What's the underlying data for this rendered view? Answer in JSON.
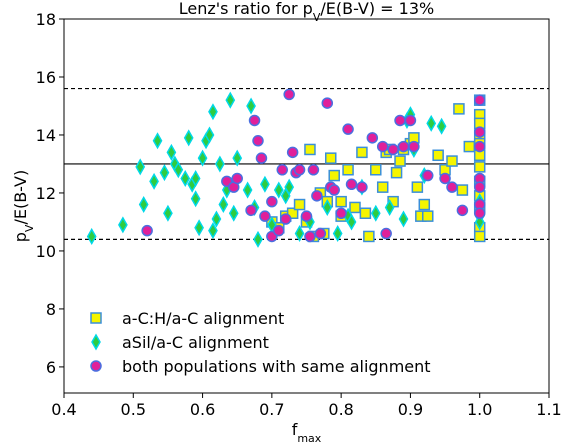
{
  "chart_data": {
    "type": "scatter",
    "title": [
      {
        "text": "Lenz's ratio for p"
      },
      {
        "text": "V",
        "sub": true
      },
      {
        "text": "/E(B-V) = 13%"
      }
    ],
    "xlabel": [
      {
        "text": "f"
      },
      {
        "text": "max",
        "sub": true
      }
    ],
    "ylabel": [
      {
        "text": "p"
      },
      {
        "text": "V",
        "sub": true
      },
      {
        "text": "/E(B-V)"
      }
    ],
    "xlim": [
      0.4,
      1.1
    ],
    "ylim": [
      5.1,
      18
    ],
    "xticks": [
      0.4,
      0.5,
      0.6,
      0.7,
      0.8,
      0.9,
      {
        "value": 1,
        "label": "1.0"
      },
      1.1
    ],
    "yticks": [
      6,
      8,
      10,
      12,
      14,
      16,
      18
    ],
    "hlines": [
      {
        "value": 13,
        "style": "solid"
      },
      {
        "value": 15.6,
        "style": "dashed"
      },
      {
        "value": 10.4,
        "style": "dashed"
      }
    ],
    "legend": "lower left",
    "series": [
      {
        "name": "a-C:H/a-C alignment",
        "marker": "square",
        "color": "#f5f500",
        "edgecolor": "#3a8fd9",
        "x": [
          0.7,
          0.71,
          0.72,
          0.73,
          0.74,
          0.75,
          0.755,
          0.76,
          0.77,
          0.775,
          0.78,
          0.785,
          0.79,
          0.8,
          0.8,
          0.81,
          0.82,
          0.83,
          0.835,
          0.84,
          0.85,
          0.86,
          0.865,
          0.87,
          0.875,
          0.88,
          0.885,
          0.89,
          0.9,
          0.905,
          0.91,
          0.915,
          0.92,
          0.925,
          0.94,
          0.95,
          0.96,
          0.97,
          0.975,
          0.985,
          1.0,
          1.0,
          1.0,
          1.0,
          1.0,
          1.0,
          1.0,
          1.0,
          1.0,
          1.0,
          1.0,
          1.0
        ],
        "y": [
          11.0,
          10.8,
          11.2,
          11.3,
          11.6,
          11.0,
          13.5,
          10.5,
          12.0,
          10.6,
          11.7,
          13.2,
          12.6,
          11.2,
          11.7,
          12.8,
          11.5,
          13.4,
          11.3,
          10.5,
          12.8,
          12.2,
          13.4,
          13.5,
          11.7,
          12.7,
          13.1,
          13.5,
          13.7,
          13.9,
          12.2,
          11.2,
          11.6,
          11.2,
          13.3,
          12.8,
          13.1,
          14.9,
          12.1,
          13.6,
          15.2,
          14.7,
          14.4,
          14.0,
          13.7,
          13.3,
          12.9,
          12.4,
          11.9,
          11.5,
          10.8,
          10.5
        ]
      },
      {
        "name": "aSil/a-C alignment",
        "marker": "diamond",
        "color": "#2ecc40",
        "edgecolor": "#00d8e8",
        "x": [
          0.44,
          0.485,
          0.51,
          0.515,
          0.53,
          0.535,
          0.545,
          0.55,
          0.555,
          0.56,
          0.565,
          0.575,
          0.58,
          0.585,
          0.59,
          0.59,
          0.595,
          0.6,
          0.605,
          0.61,
          0.615,
          0.615,
          0.62,
          0.625,
          0.63,
          0.635,
          0.64,
          0.645,
          0.65,
          0.665,
          0.67,
          0.675,
          0.68,
          0.69,
          0.7,
          0.71,
          0.72,
          0.725,
          0.74,
          0.755,
          0.78,
          0.795,
          0.81,
          0.815,
          0.83,
          0.85,
          0.87,
          0.89,
          0.895,
          0.9,
          0.905,
          0.92,
          0.93,
          0.945,
          1.0,
          1.0,
          1.0
        ],
        "y": [
          10.5,
          10.9,
          12.9,
          11.6,
          12.4,
          13.8,
          12.7,
          11.3,
          13.4,
          13.0,
          12.8,
          12.5,
          13.9,
          12.3,
          12.5,
          11.8,
          10.8,
          13.2,
          13.8,
          14.0,
          14.8,
          10.7,
          11.1,
          13.0,
          11.6,
          12.1,
          15.2,
          11.3,
          13.2,
          12.1,
          15.0,
          11.5,
          10.4,
          12.3,
          10.9,
          12.1,
          11.9,
          12.2,
          10.6,
          11.0,
          11.5,
          10.6,
          11.2,
          11.0,
          12.2,
          11.3,
          11.5,
          11.1,
          14.5,
          14.7,
          13.5,
          12.6,
          14.4,
          14.3,
          11.7,
          11.2,
          11.0
        ]
      },
      {
        "name": "both populations with same alignment",
        "marker": "circle",
        "color": "#e0209a",
        "edgecolor": "#4a6fe0",
        "x": [
          0.52,
          0.635,
          0.645,
          0.65,
          0.67,
          0.675,
          0.68,
          0.685,
          0.69,
          0.7,
          0.7,
          0.71,
          0.715,
          0.72,
          0.725,
          0.73,
          0.735,
          0.74,
          0.75,
          0.755,
          0.76,
          0.765,
          0.77,
          0.78,
          0.785,
          0.79,
          0.8,
          0.81,
          0.815,
          0.83,
          0.845,
          0.86,
          0.865,
          0.875,
          0.885,
          0.89,
          0.9,
          0.905,
          0.925,
          0.95,
          0.96,
          0.975,
          1.0,
          1.0,
          1.0,
          1.0,
          1.0,
          1.0,
          1.0
        ],
        "y": [
          10.7,
          12.4,
          12.2,
          12.5,
          11.4,
          14.5,
          13.8,
          13.2,
          11.2,
          10.5,
          11.7,
          10.7,
          12.8,
          11.1,
          15.4,
          13.4,
          12.7,
          12.8,
          11.2,
          10.5,
          12.8,
          11.9,
          10.6,
          15.1,
          12.2,
          12.1,
          11.3,
          14.2,
          12.3,
          12.2,
          13.9,
          13.6,
          10.6,
          13.5,
          14.5,
          13.6,
          14.5,
          13.6,
          12.6,
          12.5,
          12.2,
          11.4,
          15.2,
          14.1,
          13.6,
          12.5,
          12.2,
          11.6,
          11.3
        ]
      }
    ]
  }
}
